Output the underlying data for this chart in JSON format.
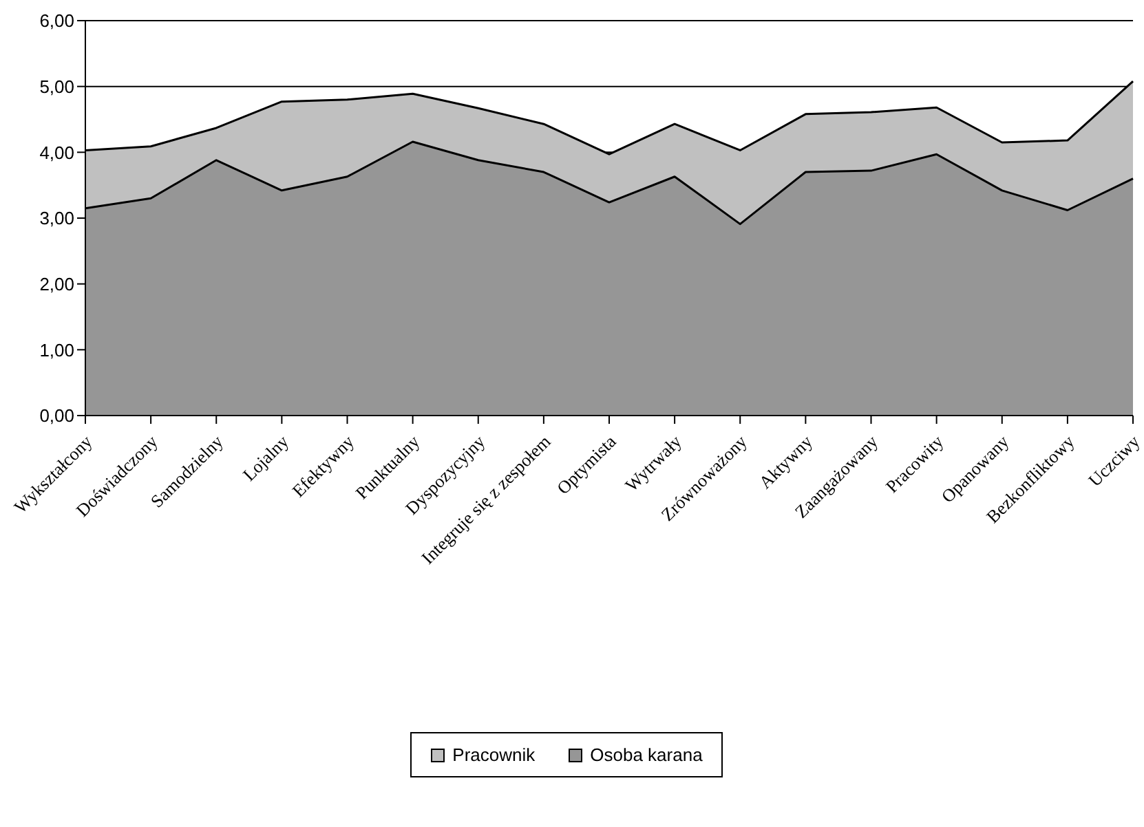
{
  "chart_data": {
    "type": "area",
    "categories": [
      "Wykształcony",
      "Doświadczony",
      "Samodzielny",
      "Lojalny",
      "Efektywny",
      "Punktualny",
      "Dyspozycyjny",
      "Integruje się z zespołem",
      "Optymista",
      "Wytrwały",
      "Zrównoważony",
      "Aktywny",
      "Zaangażowany",
      "Pracowity",
      "Opanowany",
      "Bezkonfliktowy",
      "Uczciwy"
    ],
    "series": [
      {
        "name": "Pracownik",
        "color": "#c0c0c0",
        "values": [
          4.03,
          4.09,
          4.37,
          4.77,
          4.8,
          4.89,
          4.67,
          4.43,
          3.97,
          4.43,
          4.03,
          4.58,
          4.61,
          4.68,
          4.15,
          4.18,
          5.08
        ]
      },
      {
        "name": "Osoba karana",
        "color": "#969696",
        "values": [
          3.15,
          3.3,
          3.88,
          3.42,
          3.63,
          4.16,
          3.88,
          3.7,
          3.24,
          3.63,
          2.91,
          3.7,
          3.72,
          3.97,
          3.42,
          3.12,
          3.6
        ]
      }
    ],
    "ylim": [
      0,
      6
    ],
    "yticks": [
      {
        "value": 0,
        "label": "0,00"
      },
      {
        "value": 1,
        "label": "1,00"
      },
      {
        "value": 2,
        "label": "2,00"
      },
      {
        "value": 3,
        "label": "3,00"
      },
      {
        "value": 4,
        "label": "4,00"
      },
      {
        "value": 5,
        "label": "5,00"
      },
      {
        "value": 6,
        "label": "6,00"
      }
    ],
    "grid": "y",
    "legend": "bottom"
  }
}
